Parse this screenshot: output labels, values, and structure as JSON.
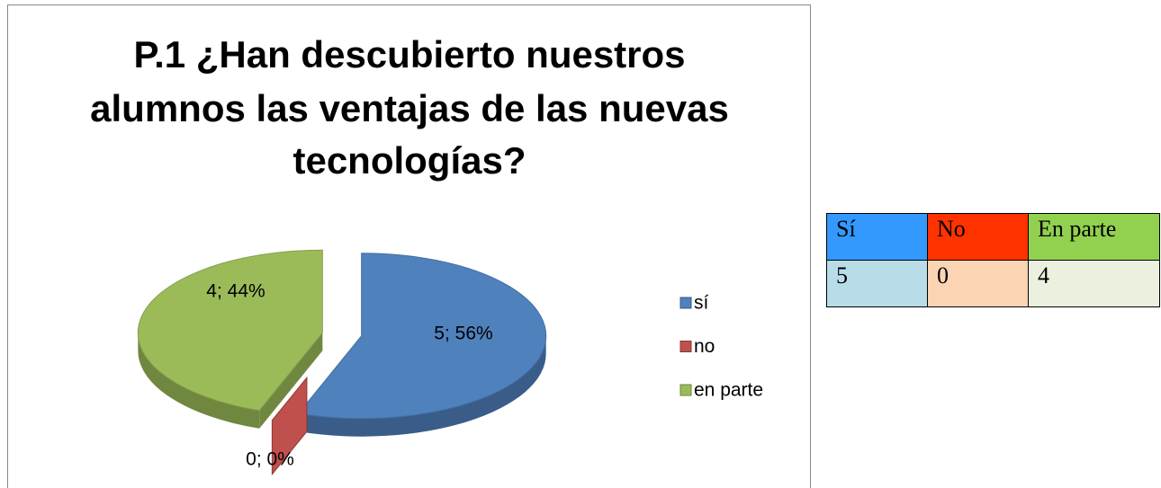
{
  "chart_data": {
    "type": "pie",
    "title": [
      "P.1 ¿Han descubierto nuestros",
      "alumnos las ventajas de las nuevas",
      "tecnologías?"
    ],
    "categories": [
      "sí",
      "no",
      "en parte"
    ],
    "values": [
      5,
      0,
      4
    ],
    "value_labels": [
      "5; 56%",
      "0; 0%",
      "4; 44%"
    ],
    "colors": [
      "#4f81bd",
      "#c0504d",
      "#9bbb59"
    ],
    "legend": "right"
  },
  "table": {
    "header": [
      "Sí",
      "No",
      "En parte"
    ],
    "header_colors": [
      "#3399ff",
      "#ff3300",
      "#92d050"
    ],
    "rows": [
      [
        5,
        0,
        4
      ]
    ],
    "row_colors": [
      "#b8dde8",
      "#fbd4b4",
      "#ebf1de"
    ]
  }
}
